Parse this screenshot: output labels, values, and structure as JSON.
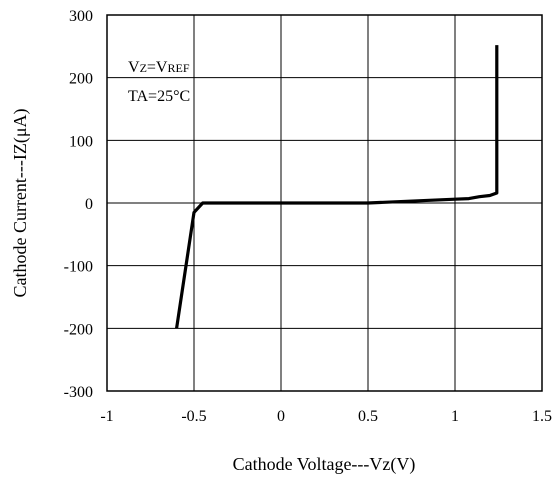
{
  "chart_data": {
    "type": "line",
    "xlabel": "Cathode Voltage---Vz(V)",
    "ylabel": "Cathode Current---IZ(μA)",
    "xlim": [
      -1,
      1.5
    ],
    "ylim": [
      -300,
      300
    ],
    "xticks": [
      "-1",
      "-0.5",
      "0",
      "0.5",
      "1",
      "1.5"
    ],
    "yticks": [
      "300",
      "200",
      "100",
      "0",
      "-100",
      "-200",
      "-300"
    ],
    "grid": true,
    "annotations": {
      "line1_prefix": "V",
      "line1_sub": "Z",
      "line1_eq": "=V",
      "line1_sub2": "REF",
      "line2": "TA=25°C"
    },
    "series": [
      {
        "x": [
          -0.6,
          -0.5,
          -0.45,
          0.5,
          1.0,
          1.08,
          1.14,
          1.2,
          1.24,
          1.24
        ],
        "y": [
          -200,
          -15,
          0,
          0,
          6,
          7,
          10,
          12,
          16,
          252
        ]
      }
    ]
  }
}
